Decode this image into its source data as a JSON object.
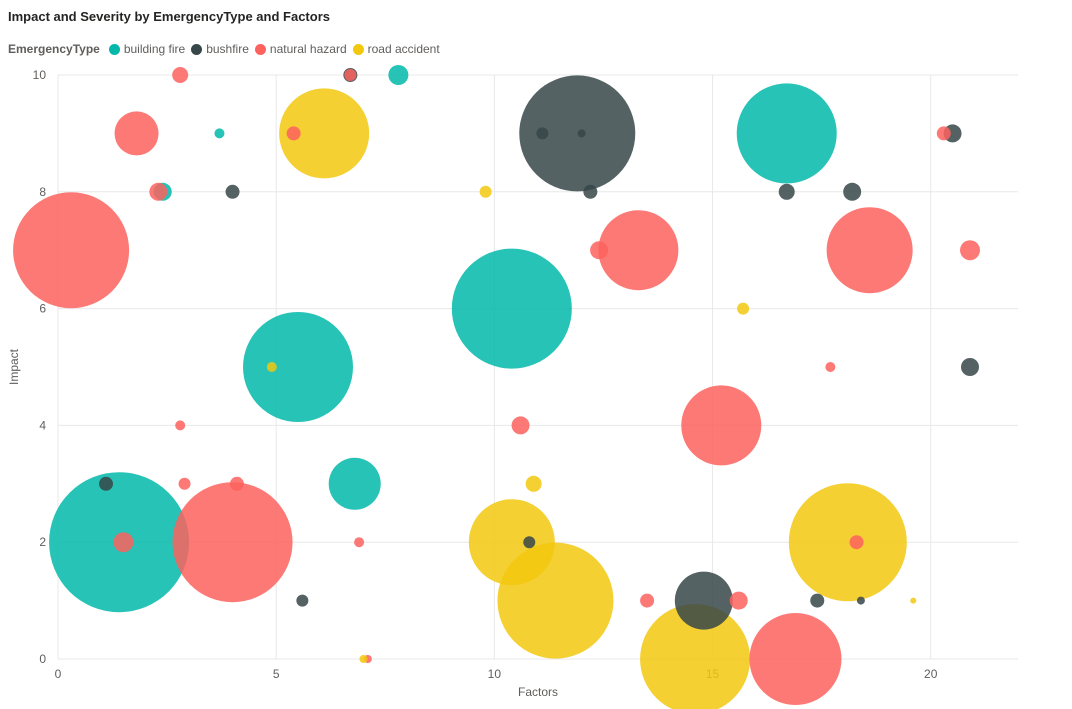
{
  "chart_data": {
    "type": "scatter",
    "title": "Impact and Severity by EmergencyType and Factors",
    "xlabel": "Factors",
    "ylabel": "Impact",
    "xlim": [
      0,
      22
    ],
    "ylim": [
      0,
      10
    ],
    "xticks": [
      0,
      5,
      10,
      15,
      20
    ],
    "yticks": [
      0,
      2,
      4,
      6,
      8,
      10
    ],
    "grid": true,
    "legend": {
      "title": "EmergencyType",
      "position": "top-left"
    },
    "size_field": "Severity",
    "series": [
      {
        "name": "building fire",
        "color": "#01B8AA",
        "points": [
          {
            "x": 1.4,
            "y": 2,
            "size": 70
          },
          {
            "x": 5.5,
            "y": 5,
            "size": 55
          },
          {
            "x": 10.4,
            "y": 6,
            "size": 60
          },
          {
            "x": 16.7,
            "y": 9,
            "size": 50
          },
          {
            "x": 6.8,
            "y": 3,
            "size": 26
          },
          {
            "x": 2.4,
            "y": 8,
            "size": 9
          },
          {
            "x": 3.7,
            "y": 9,
            "size": 5
          },
          {
            "x": 7.8,
            "y": 10,
            "size": 10
          }
        ]
      },
      {
        "name": "bushfire",
        "color": "#374649",
        "points": [
          {
            "x": 11.9,
            "y": 9,
            "size": 58
          },
          {
            "x": 14.8,
            "y": 1,
            "size": 29
          },
          {
            "x": 1.1,
            "y": 3,
            "size": 7
          },
          {
            "x": 4.0,
            "y": 8,
            "size": 7
          },
          {
            "x": 6.7,
            "y": 10,
            "size": 7
          },
          {
            "x": 5.6,
            "y": 1,
            "size": 6
          },
          {
            "x": 10.8,
            "y": 2,
            "size": 6
          },
          {
            "x": 11.1,
            "y": 9,
            "size": 6
          },
          {
            "x": 12.0,
            "y": 9,
            "size": 4
          },
          {
            "x": 12.2,
            "y": 8,
            "size": 7
          },
          {
            "x": 16.7,
            "y": 8,
            "size": 8
          },
          {
            "x": 18.2,
            "y": 8,
            "size": 9
          },
          {
            "x": 17.4,
            "y": 1,
            "size": 7
          },
          {
            "x": 18.4,
            "y": 1,
            "size": 4
          },
          {
            "x": 20.5,
            "y": 9,
            "size": 9
          },
          {
            "x": 20.9,
            "y": 5,
            "size": 9
          }
        ]
      },
      {
        "name": "natural hazard",
        "color": "#FD625E",
        "points": [
          {
            "x": 0.3,
            "y": 7,
            "size": 58
          },
          {
            "x": 4.0,
            "y": 2,
            "size": 60
          },
          {
            "x": 13.3,
            "y": 7,
            "size": 40
          },
          {
            "x": 15.2,
            "y": 4,
            "size": 40
          },
          {
            "x": 18.6,
            "y": 7,
            "size": 43
          },
          {
            "x": 16.9,
            "y": 0,
            "size": 46
          },
          {
            "x": 1.8,
            "y": 9,
            "size": 22
          },
          {
            "x": 2.3,
            "y": 8,
            "size": 9
          },
          {
            "x": 2.8,
            "y": 10,
            "size": 8
          },
          {
            "x": 1.5,
            "y": 2,
            "size": 10
          },
          {
            "x": 2.8,
            "y": 4,
            "size": 5
          },
          {
            "x": 2.9,
            "y": 3,
            "size": 6
          },
          {
            "x": 4.1,
            "y": 3,
            "size": 7
          },
          {
            "x": 5.4,
            "y": 9,
            "size": 7
          },
          {
            "x": 6.7,
            "y": 10,
            "size": 6
          },
          {
            "x": 6.9,
            "y": 2,
            "size": 5
          },
          {
            "x": 7.1,
            "y": 0,
            "size": 4
          },
          {
            "x": 10.6,
            "y": 4,
            "size": 9
          },
          {
            "x": 12.4,
            "y": 7,
            "size": 9
          },
          {
            "x": 13.5,
            "y": 1,
            "size": 7
          },
          {
            "x": 15.6,
            "y": 1,
            "size": 9
          },
          {
            "x": 17.7,
            "y": 5,
            "size": 5
          },
          {
            "x": 18.3,
            "y": 2,
            "size": 7
          },
          {
            "x": 20.3,
            "y": 9,
            "size": 7
          },
          {
            "x": 20.9,
            "y": 7,
            "size": 10
          }
        ]
      },
      {
        "name": "road accident",
        "color": "#F2C80F",
        "points": [
          {
            "x": 6.1,
            "y": 9,
            "size": 45
          },
          {
            "x": 10.4,
            "y": 2,
            "size": 43
          },
          {
            "x": 11.4,
            "y": 1,
            "size": 58
          },
          {
            "x": 14.6,
            "y": 0,
            "size": 55
          },
          {
            "x": 18.1,
            "y": 2,
            "size": 59
          },
          {
            "x": 4.9,
            "y": 5,
            "size": 5
          },
          {
            "x": 9.8,
            "y": 8,
            "size": 6
          },
          {
            "x": 10.9,
            "y": 3,
            "size": 8
          },
          {
            "x": 15.7,
            "y": 6,
            "size": 6
          },
          {
            "x": 7.0,
            "y": 0,
            "size": 4
          },
          {
            "x": 19.6,
            "y": 1,
            "size": 3
          }
        ]
      }
    ]
  }
}
